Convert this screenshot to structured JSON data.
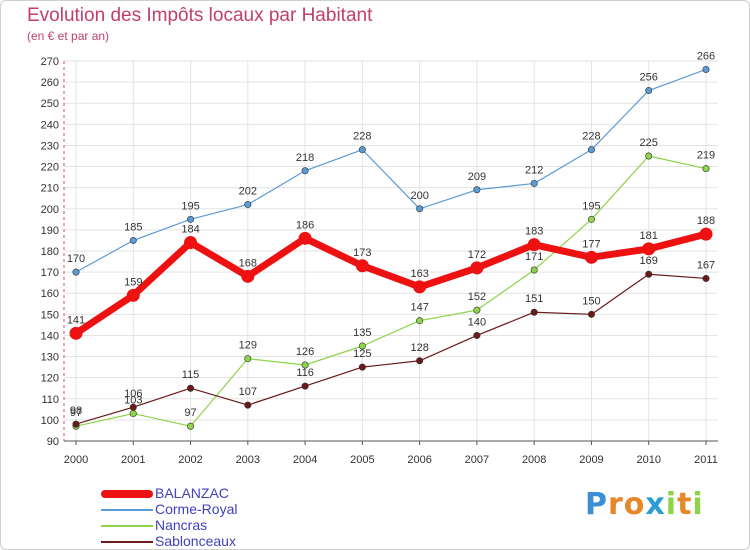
{
  "chart_data": {
    "type": "line",
    "title": "Evolution des Impôts locaux par Habitant",
    "subtitle": "(en € et par an)",
    "xlabel": "",
    "ylabel": "",
    "categories": [
      "2000",
      "2001",
      "2002",
      "2003",
      "2004",
      "2005",
      "2006",
      "2007",
      "2008",
      "2009",
      "2010",
      "2011"
    ],
    "ylim": [
      90,
      270
    ],
    "yticks": [
      90,
      100,
      110,
      120,
      130,
      140,
      150,
      160,
      170,
      180,
      190,
      200,
      210,
      220,
      230,
      240,
      250,
      260,
      270
    ],
    "grid": true,
    "legend_position": "bottom-left",
    "series": [
      {
        "name": "Corme-Royal",
        "color": "#5b9bd5",
        "values": [
          170,
          185,
          195,
          202,
          218,
          228,
          200,
          209,
          212,
          228,
          256,
          266
        ]
      },
      {
        "name": "Nancras",
        "color": "#8ed44a",
        "values": [
          97,
          103,
          97,
          129,
          126,
          135,
          147,
          152,
          171,
          195,
          225,
          219
        ]
      },
      {
        "name": "Sablonceaux",
        "color": "#6b1a1a",
        "values": [
          98,
          106,
          115,
          107,
          116,
          125,
          128,
          140,
          151,
          150,
          169,
          167
        ]
      },
      {
        "name": "BALANZAC",
        "color": "#ee1111",
        "values": [
          141,
          159,
          184,
          168,
          186,
          173,
          163,
          172,
          183,
          177,
          181,
          188
        ]
      }
    ]
  },
  "legend": [
    {
      "name": "BALANZAC",
      "color": "#ee1111"
    },
    {
      "name": "Corme-Royal",
      "color": "#5b9bd5"
    },
    {
      "name": "Nancras",
      "color": "#8ed44a"
    },
    {
      "name": "Sablonceaux",
      "color": "#6b1a1a"
    }
  ],
  "logo": {
    "letters": [
      "P",
      "r",
      "o",
      "x",
      "i",
      "t",
      "i"
    ],
    "colors": [
      "#3a8fd6",
      "#e8862a",
      "#e8862a",
      "#2a9cd6",
      "#8ed44a",
      "#e8862a",
      "#8ed44a"
    ]
  }
}
